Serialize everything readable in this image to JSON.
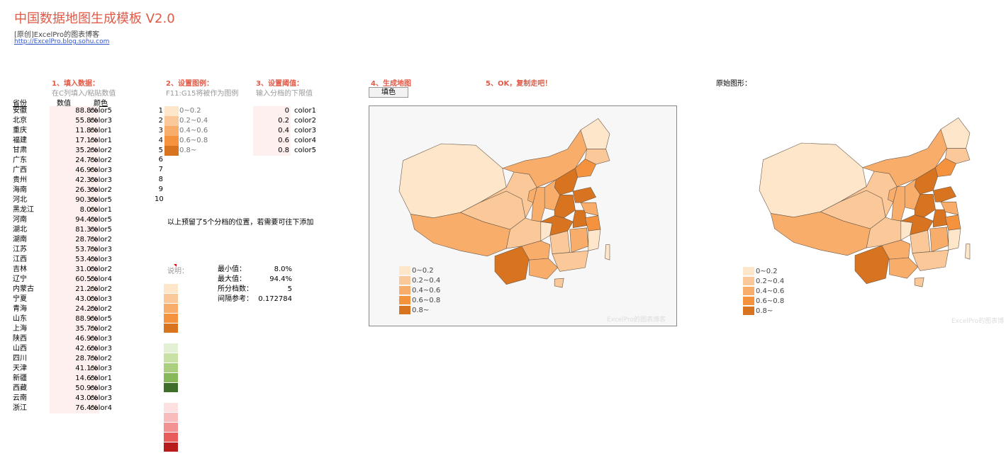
{
  "header": {
    "title": "中国数据地图生成模板 V2.0",
    "subtitle": "[原创]ExcelPro的图表博客",
    "link": "http://ExcelPro.blog.sohu.com"
  },
  "steps": {
    "s1": {
      "title": "1、填入数据：",
      "hint": "在C列填入/粘贴数值"
    },
    "s2": {
      "title": "2、设置图例：",
      "hint": "F11:G15将被作为图例"
    },
    "s3": {
      "title": "3、设置阈值：",
      "hint": "输入分档的下限值"
    },
    "s4": {
      "title": "4、生成地图",
      "button": "填色"
    },
    "s5": {
      "title": "5、OK，复制走吧！"
    },
    "orig": {
      "title": "原始图形："
    }
  },
  "table": {
    "headers": {
      "province": "省份",
      "value": "数值",
      "color": "颜色"
    },
    "rows": [
      {
        "name": "安徽",
        "value": "88.8%",
        "color": "color5"
      },
      {
        "name": "北京",
        "value": "55.8%",
        "color": "color3"
      },
      {
        "name": "重庆",
        "value": "11.8%",
        "color": "color1"
      },
      {
        "name": "福建",
        "value": "17.1%",
        "color": "color1"
      },
      {
        "name": "甘肃",
        "value": "35.2%",
        "color": "color2"
      },
      {
        "name": "广东",
        "value": "24.7%",
        "color": "color2"
      },
      {
        "name": "广西",
        "value": "46.9%",
        "color": "color3"
      },
      {
        "name": "贵州",
        "value": "42.3%",
        "color": "color3"
      },
      {
        "name": "海南",
        "value": "26.3%",
        "color": "color2"
      },
      {
        "name": "河北",
        "value": "90.3%",
        "color": "color5"
      },
      {
        "name": "黑龙江",
        "value": "8.0%",
        "color": "color1"
      },
      {
        "name": "河南",
        "value": "94.4%",
        "color": "color5"
      },
      {
        "name": "湖北",
        "value": "81.3%",
        "color": "color5"
      },
      {
        "name": "湖南",
        "value": "28.7%",
        "color": "color2"
      },
      {
        "name": "江苏",
        "value": "53.7%",
        "color": "color3"
      },
      {
        "name": "江西",
        "value": "53.4%",
        "color": "color3"
      },
      {
        "name": "吉林",
        "value": "31.0%",
        "color": "color2"
      },
      {
        "name": "辽宁",
        "value": "60.5%",
        "color": "color4"
      },
      {
        "name": "内蒙古",
        "value": "21.2%",
        "color": "color2"
      },
      {
        "name": "宁夏",
        "value": "43.0%",
        "color": "color3"
      },
      {
        "name": "青海",
        "value": "24.2%",
        "color": "color2"
      },
      {
        "name": "山东",
        "value": "88.9%",
        "color": "color5"
      },
      {
        "name": "上海",
        "value": "35.7%",
        "color": "color2"
      },
      {
        "name": "陕西",
        "value": "46.9%",
        "color": "color3"
      },
      {
        "name": "山西",
        "value": "42.6%",
        "color": "color3"
      },
      {
        "name": "四川",
        "value": "28.7%",
        "color": "color2"
      },
      {
        "name": "天津",
        "value": "41.1%",
        "color": "color3"
      },
      {
        "name": "新疆",
        "value": "14.6%",
        "color": "color1"
      },
      {
        "name": "西藏",
        "value": "50.9%",
        "color": "color3"
      },
      {
        "name": "云南",
        "value": "43.0%",
        "color": "color3"
      },
      {
        "name": "浙江",
        "value": "76.4%",
        "color": "color4"
      }
    ]
  },
  "legend": {
    "indices": [
      "1",
      "2",
      "3",
      "4",
      "5",
      "6",
      "7",
      "8",
      "9",
      "10"
    ],
    "labels": [
      "0~0.2",
      "0.2~0.4",
      "0.4~0.6",
      "0.6~0.8",
      "0.8~"
    ],
    "colors": [
      "#fde6c9",
      "#fbc999",
      "#f9ad6a",
      "#f5923e",
      "#d8731f"
    ]
  },
  "thresholds": [
    {
      "value": "0",
      "name": "color1"
    },
    {
      "value": "0.2",
      "name": "color2"
    },
    {
      "value": "0.4",
      "name": "color3"
    },
    {
      "value": "0.6",
      "name": "color4"
    },
    {
      "value": "0.8",
      "name": "color5"
    }
  ],
  "note": "以上预留了5个分档的位置，若需要可往下添加",
  "explain_label": "说明：",
  "stats": [
    {
      "key": "最小值：",
      "value": "8.0%"
    },
    {
      "key": "最大值：",
      "value": "94.4%"
    },
    {
      "key": "所分档数：",
      "value": "5"
    },
    {
      "key": "间隔参考：",
      "value": "0.172784"
    }
  ],
  "palettes": {
    "orange": [
      "#fde6c9",
      "#fbc999",
      "#f9ad6a",
      "#f5923e",
      "#d8731f"
    ],
    "green": [
      "#e3f0d3",
      "#c8e2a6",
      "#aad07f",
      "#87b95a",
      "#3f6e2a"
    ],
    "red": [
      "#fde0e0",
      "#f9bcbc",
      "#f39292",
      "#e95c5c",
      "#b81c1c"
    ]
  },
  "watermark_generated": "ExcelPro的图表博客",
  "watermark_original": "ExcelPro的图表博"
}
